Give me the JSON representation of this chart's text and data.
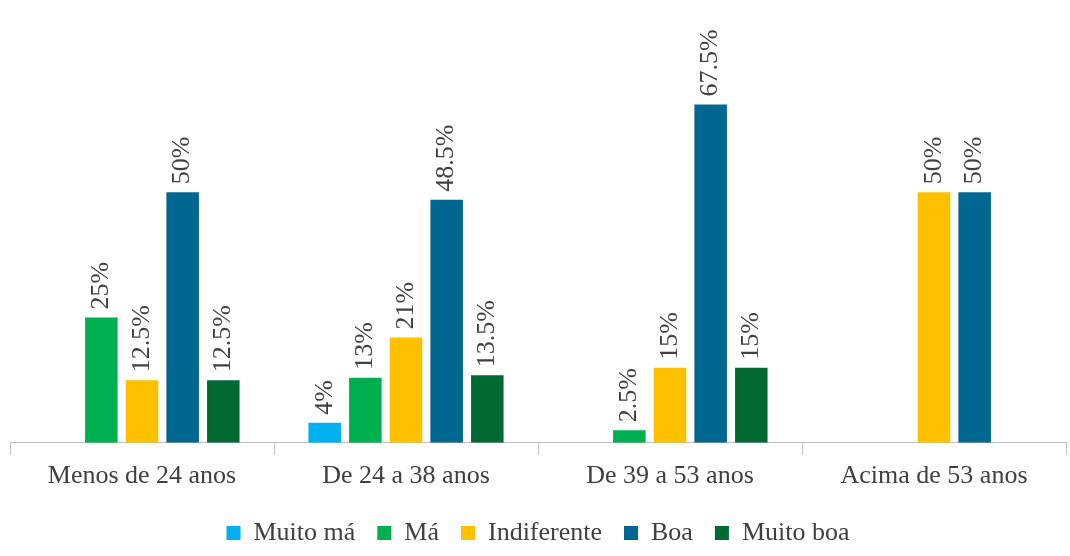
{
  "chart_data": {
    "type": "bar",
    "categories": [
      "Menos de 24 anos",
      "De 24 a 38 anos",
      "De 39 a 53 anos",
      "Acima de 53 anos"
    ],
    "series": [
      {
        "name": "Muito má",
        "color": "#00b0f0",
        "values": [
          null,
          4,
          null,
          null
        ],
        "value_labels": [
          null,
          "4%",
          null,
          null
        ]
      },
      {
        "name": "Má",
        "color": "#00b050",
        "values": [
          25,
          13,
          2.5,
          null
        ],
        "value_labels": [
          "25%",
          "13%",
          "2.5%",
          null
        ]
      },
      {
        "name": "Indiferente",
        "color": "#ffc000",
        "values": [
          12.5,
          21,
          15,
          50
        ],
        "value_labels": [
          "12.5%",
          "21%",
          "15%",
          "50%"
        ]
      },
      {
        "name": "Boa",
        "color": "#006890",
        "values": [
          50,
          48.5,
          67.5,
          50
        ],
        "value_labels": [
          "50%",
          "48.5%",
          "67.5%",
          "50%"
        ]
      },
      {
        "name": "Muito boa",
        "color": "#006a33",
        "values": [
          12.5,
          13.5,
          15,
          null
        ],
        "value_labels": [
          "12.5%",
          "13.5%",
          "15%",
          null
        ]
      }
    ],
    "grid": false,
    "legend": "bottom"
  }
}
